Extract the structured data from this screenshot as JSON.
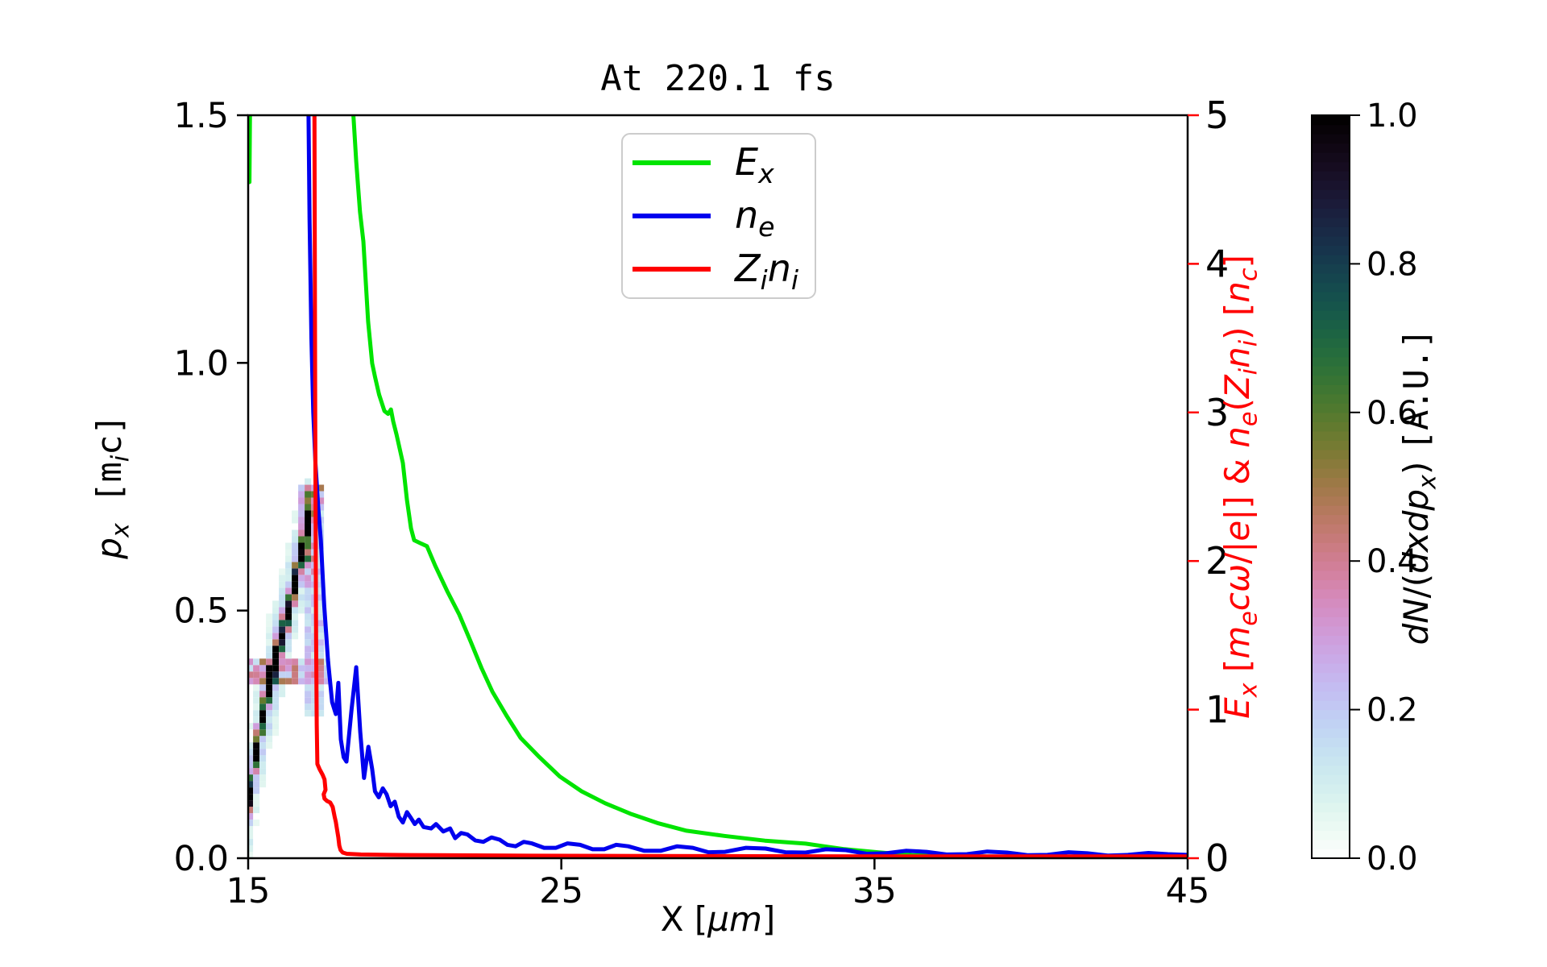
{
  "title": "At 220.1 fs",
  "colors": {
    "ex_green": "#00e400",
    "ne_blue": "#0000ee",
    "zini_red": "#ff0000",
    "axis_black": "#000000",
    "right_axis_red": "#ff0000",
    "legend_border": "#cccccc"
  },
  "axes": {
    "x": {
      "label_segments": [
        {
          "t": "X [",
          "s": "u"
        },
        {
          "t": "μm",
          "s": "i"
        },
        {
          "t": "]",
          "s": "u"
        }
      ],
      "min": 15,
      "max": 45,
      "ticks": [
        15,
        25,
        35,
        45
      ],
      "tick_labels": [
        "15",
        "25",
        "35",
        "45"
      ]
    },
    "y_left": {
      "label_segments": [
        {
          "t": "p",
          "s": "i"
        },
        {
          "t": "x",
          "s": "is"
        },
        {
          "t": " [m",
          "s": "m"
        },
        {
          "t": "i",
          "s": "is"
        },
        {
          "t": "c]",
          "s": "m"
        }
      ],
      "min": 0.0,
      "max": 1.5,
      "ticks": [
        0.0,
        0.5,
        1.0,
        1.5
      ],
      "tick_labels": [
        "0.0",
        "0.5",
        "1.0",
        "1.5"
      ]
    },
    "y_right": {
      "label_segments": [
        {
          "t": "E",
          "s": "i"
        },
        {
          "t": "x",
          "s": "is"
        },
        {
          "t": " [",
          "s": "u"
        },
        {
          "t": "m",
          "s": "i"
        },
        {
          "t": "e",
          "s": "is"
        },
        {
          "t": "cω",
          "s": "i"
        },
        {
          "t": "/|",
          "s": "u"
        },
        {
          "t": "e",
          "s": "i"
        },
        {
          "t": "|] & ",
          "s": "u"
        },
        {
          "t": "n",
          "s": "i"
        },
        {
          "t": "e",
          "s": "is"
        },
        {
          "t": "(",
          "s": "u"
        },
        {
          "t": "Z",
          "s": "i"
        },
        {
          "t": "i",
          "s": "is"
        },
        {
          "t": "n",
          "s": "i"
        },
        {
          "t": "i",
          "s": "is"
        },
        {
          "t": ") [",
          "s": "u"
        },
        {
          "t": "n",
          "s": "i"
        },
        {
          "t": "c",
          "s": "is"
        },
        {
          "t": "]",
          "s": "u"
        }
      ],
      "min": 0,
      "max": 5,
      "ticks": [
        0,
        1,
        2,
        3,
        4,
        5
      ],
      "tick_labels": [
        "0",
        "1",
        "2",
        "3",
        "4",
        "5"
      ]
    }
  },
  "colorbar": {
    "label_segments": [
      {
        "t": "dN",
        "s": "i"
      },
      {
        "t": "/(",
        "s": "u"
      },
      {
        "t": "dxdp",
        "s": "i"
      },
      {
        "t": "x",
        "s": "is"
      },
      {
        "t": ") ",
        "s": "u"
      },
      {
        "t": "[A.U.]",
        "s": "m"
      }
    ],
    "colormap": "cubehelix_r",
    "min": 0.0,
    "max": 1.0,
    "ticks": [
      0.0,
      0.2,
      0.4,
      0.6,
      0.8,
      1.0
    ],
    "tick_labels": [
      "0.0",
      "0.2",
      "0.4",
      "0.6",
      "0.8",
      "1.0"
    ]
  },
  "legend": {
    "entries": [
      {
        "name": "Ex",
        "color": "#00e400",
        "label_segments": [
          {
            "t": "E",
            "s": "i"
          },
          {
            "t": "x",
            "s": "is"
          }
        ]
      },
      {
        "name": "ne",
        "color": "#0000ee",
        "label_segments": [
          {
            "t": "n",
            "s": "i"
          },
          {
            "t": "e",
            "s": "is"
          }
        ]
      },
      {
        "name": "Zini",
        "color": "#ff0000",
        "label_segments": [
          {
            "t": "Z",
            "s": "i"
          },
          {
            "t": "i",
            "s": "is"
          },
          {
            "t": "n",
            "s": "i"
          },
          {
            "t": "i",
            "s": "is"
          }
        ]
      }
    ]
  },
  "chart_data": {
    "type": "line+heatmap",
    "x_axis": {
      "label": "X [um]",
      "range": [
        15,
        45
      ]
    },
    "y_left_axis": {
      "label": "p_x [m_i c]",
      "range": [
        0.0,
        1.5
      ]
    },
    "y_right_axis": {
      "label": "E_x [m_e c w/|e|] & n_e(Z_i n_i) [n_c]",
      "range": [
        0,
        5
      ]
    },
    "series": [
      {
        "name": "E_x",
        "axis": "right",
        "color": "#00e400",
        "segments": [
          [
            [
              15.0,
              5.6
            ],
            [
              15.04,
              4.55
            ],
            [
              15.08,
              5.6
            ]
          ],
          [
            [
              18.28,
              5.6
            ],
            [
              18.36,
              5.0
            ],
            [
              18.45,
              4.69
            ],
            [
              18.57,
              4.35
            ],
            [
              18.68,
              4.15
            ],
            [
              18.83,
              3.61
            ],
            [
              18.96,
              3.33
            ],
            [
              19.05,
              3.24
            ],
            [
              19.18,
              3.12
            ],
            [
              19.35,
              3.01
            ],
            [
              19.47,
              2.99
            ],
            [
              19.56,
              3.02
            ],
            [
              19.63,
              2.94
            ],
            [
              19.74,
              2.85
            ],
            [
              19.94,
              2.66
            ],
            [
              20.07,
              2.41
            ],
            [
              20.2,
              2.22
            ],
            [
              20.3,
              2.14
            ],
            [
              20.5,
              2.12
            ],
            [
              20.71,
              2.1
            ],
            [
              20.97,
              1.97
            ],
            [
              21.35,
              1.8
            ],
            [
              21.74,
              1.64
            ],
            [
              22.1,
              1.46
            ],
            [
              22.45,
              1.28
            ],
            [
              22.8,
              1.12
            ],
            [
              23.25,
              0.96
            ],
            [
              23.7,
              0.81
            ],
            [
              24.3,
              0.68
            ],
            [
              24.95,
              0.55
            ],
            [
              25.65,
              0.45
            ],
            [
              26.4,
              0.37
            ],
            [
              27.2,
              0.3
            ],
            [
              28.1,
              0.235
            ],
            [
              29.0,
              0.185
            ],
            [
              30.2,
              0.15
            ],
            [
              31.5,
              0.118
            ],
            [
              32.8,
              0.098
            ],
            [
              34.0,
              0.062
            ],
            [
              35.1,
              0.04
            ],
            [
              36.2,
              0.02
            ],
            [
              37.5,
              0.014
            ],
            [
              39.0,
              0.011
            ],
            [
              41.0,
              0.01
            ],
            [
              45.0,
              0.009
            ]
          ]
        ]
      },
      {
        "name": "n_e",
        "axis": "right",
        "color": "#0000ee",
        "segments": [
          [
            [
              16.9,
              5.6
            ],
            [
              16.96,
              4.3
            ],
            [
              17.02,
              3.5
            ],
            [
              17.08,
              3.0
            ],
            [
              17.15,
              2.65
            ],
            [
              17.24,
              2.35
            ],
            [
              17.32,
              2.14
            ],
            [
              17.43,
              1.7
            ],
            [
              17.55,
              1.33
            ],
            [
              17.68,
              1.05
            ],
            [
              17.8,
              0.97
            ],
            [
              17.88,
              1.18
            ],
            [
              17.96,
              0.8
            ],
            [
              18.05,
              0.68
            ],
            [
              18.14,
              0.65
            ],
            [
              18.3,
              1.0
            ],
            [
              18.45,
              1.285
            ],
            [
              18.58,
              0.85
            ],
            [
              18.7,
              0.54
            ],
            [
              18.84,
              0.75
            ],
            [
              18.96,
              0.6
            ],
            [
              19.05,
              0.45
            ],
            [
              19.17,
              0.41
            ],
            [
              19.3,
              0.47
            ],
            [
              19.42,
              0.43
            ],
            [
              19.55,
              0.35
            ],
            [
              19.68,
              0.38
            ],
            [
              19.81,
              0.28
            ],
            [
              19.94,
              0.24
            ],
            [
              20.07,
              0.31
            ],
            [
              20.2,
              0.27
            ],
            [
              20.32,
              0.23
            ],
            [
              20.45,
              0.26
            ],
            [
              20.6,
              0.21
            ],
            [
              20.84,
              0.2
            ],
            [
              21.0,
              0.23
            ],
            [
              21.23,
              0.18
            ],
            [
              21.45,
              0.2
            ],
            [
              21.61,
              0.135
            ],
            [
              21.8,
              0.17
            ],
            [
              22.0,
              0.16
            ],
            [
              22.25,
              0.12
            ],
            [
              22.51,
              0.11
            ],
            [
              22.77,
              0.14
            ],
            [
              23.03,
              0.125
            ],
            [
              23.28,
              0.09
            ],
            [
              23.54,
              0.08
            ],
            [
              23.8,
              0.11
            ],
            [
              24.06,
              0.1
            ],
            [
              24.45,
              0.07
            ],
            [
              24.83,
              0.07
            ],
            [
              25.2,
              0.1
            ],
            [
              25.6,
              0.09
            ],
            [
              26.0,
              0.06
            ],
            [
              26.37,
              0.06
            ],
            [
              26.75,
              0.09
            ],
            [
              27.14,
              0.08
            ],
            [
              27.65,
              0.05
            ],
            [
              28.17,
              0.05
            ],
            [
              28.7,
              0.08
            ],
            [
              29.2,
              0.07
            ],
            [
              29.7,
              0.04
            ],
            [
              30.23,
              0.043
            ],
            [
              30.9,
              0.07
            ],
            [
              31.52,
              0.065
            ],
            [
              32.15,
              0.04
            ],
            [
              32.8,
              0.038
            ],
            [
              33.45,
              0.06
            ],
            [
              34.09,
              0.054
            ],
            [
              34.75,
              0.03
            ],
            [
              35.37,
              0.033
            ],
            [
              36.0,
              0.05
            ],
            [
              36.66,
              0.043
            ],
            [
              37.3,
              0.025
            ],
            [
              37.95,
              0.027
            ],
            [
              38.6,
              0.045
            ],
            [
              39.23,
              0.038
            ],
            [
              39.9,
              0.02
            ],
            [
              40.52,
              0.022
            ],
            [
              41.2,
              0.04
            ],
            [
              41.8,
              0.033
            ],
            [
              42.45,
              0.018
            ],
            [
              43.09,
              0.022
            ],
            [
              43.75,
              0.035
            ],
            [
              44.37,
              0.027
            ],
            [
              45.0,
              0.022
            ]
          ]
        ]
      },
      {
        "name": "Z_i n_i",
        "axis": "right",
        "color": "#ff0000",
        "segments": [
          [
            [
              17.11,
              5.6
            ],
            [
              17.14,
              3.0
            ],
            [
              17.17,
              1.5
            ],
            [
              17.19,
              0.9
            ],
            [
              17.21,
              0.634
            ],
            [
              17.28,
              0.6
            ],
            [
              17.38,
              0.56
            ],
            [
              17.44,
              0.53
            ],
            [
              17.47,
              0.46
            ],
            [
              17.41,
              0.43
            ],
            [
              17.44,
              0.4
            ],
            [
              17.52,
              0.385
            ],
            [
              17.62,
              0.375
            ],
            [
              17.7,
              0.345
            ],
            [
              17.76,
              0.28
            ],
            [
              17.8,
              0.244
            ],
            [
              17.84,
              0.19
            ],
            [
              17.88,
              0.14
            ],
            [
              17.91,
              0.085
            ],
            [
              17.95,
              0.055
            ],
            [
              18.02,
              0.038
            ],
            [
              18.15,
              0.03
            ],
            [
              18.6,
              0.025
            ],
            [
              19.5,
              0.022
            ],
            [
              21.0,
              0.02
            ],
            [
              24.0,
              0.017
            ],
            [
              28.0,
              0.015
            ],
            [
              33.0,
              0.013
            ],
            [
              38.0,
              0.012
            ],
            [
              45.0,
              0.012
            ]
          ]
        ]
      }
    ],
    "heatmap": {
      "name": "dN/(dxdp_x) phase space",
      "axis": "left",
      "x_range": [
        14.95,
        17.75
      ],
      "p_range": [
        0.0,
        0.76
      ],
      "cell_dx": 0.206,
      "cell_dp": 0.013,
      "ridge": [
        [
          14.92,
          0.04
        ],
        [
          15.0,
          0.1
        ],
        [
          15.1,
          0.16
        ],
        [
          15.25,
          0.21
        ],
        [
          15.4,
          0.265
        ],
        [
          15.55,
          0.315
        ],
        [
          15.7,
          0.355
        ],
        [
          15.85,
          0.395
        ],
        [
          16.0,
          0.43
        ],
        [
          16.15,
          0.465
        ],
        [
          16.3,
          0.5
        ],
        [
          16.45,
          0.545
        ],
        [
          16.6,
          0.59
        ],
        [
          16.75,
          0.635
        ],
        [
          16.88,
          0.665
        ],
        [
          16.98,
          0.69
        ]
      ],
      "core_sigma": 0.022,
      "halo_sigma": 0.08,
      "band": {
        "p_from": 0.345,
        "p_to": 0.405,
        "x_to": 17.68
      },
      "column": {
        "x_from": 16.75,
        "x_to": 17.45,
        "p_from": 0.28,
        "p_to": 0.75
      },
      "cap": {
        "x_from": 16.5,
        "x_to": 17.3,
        "p_from": 0.66,
        "p_to": 0.75
      },
      "noise_seed": 123457,
      "value_range": [
        0.0,
        1.0
      ]
    }
  },
  "geometry_note": "plot area left 308, right 1474, top 143, bottom 1065; colorbar 1628-1675"
}
